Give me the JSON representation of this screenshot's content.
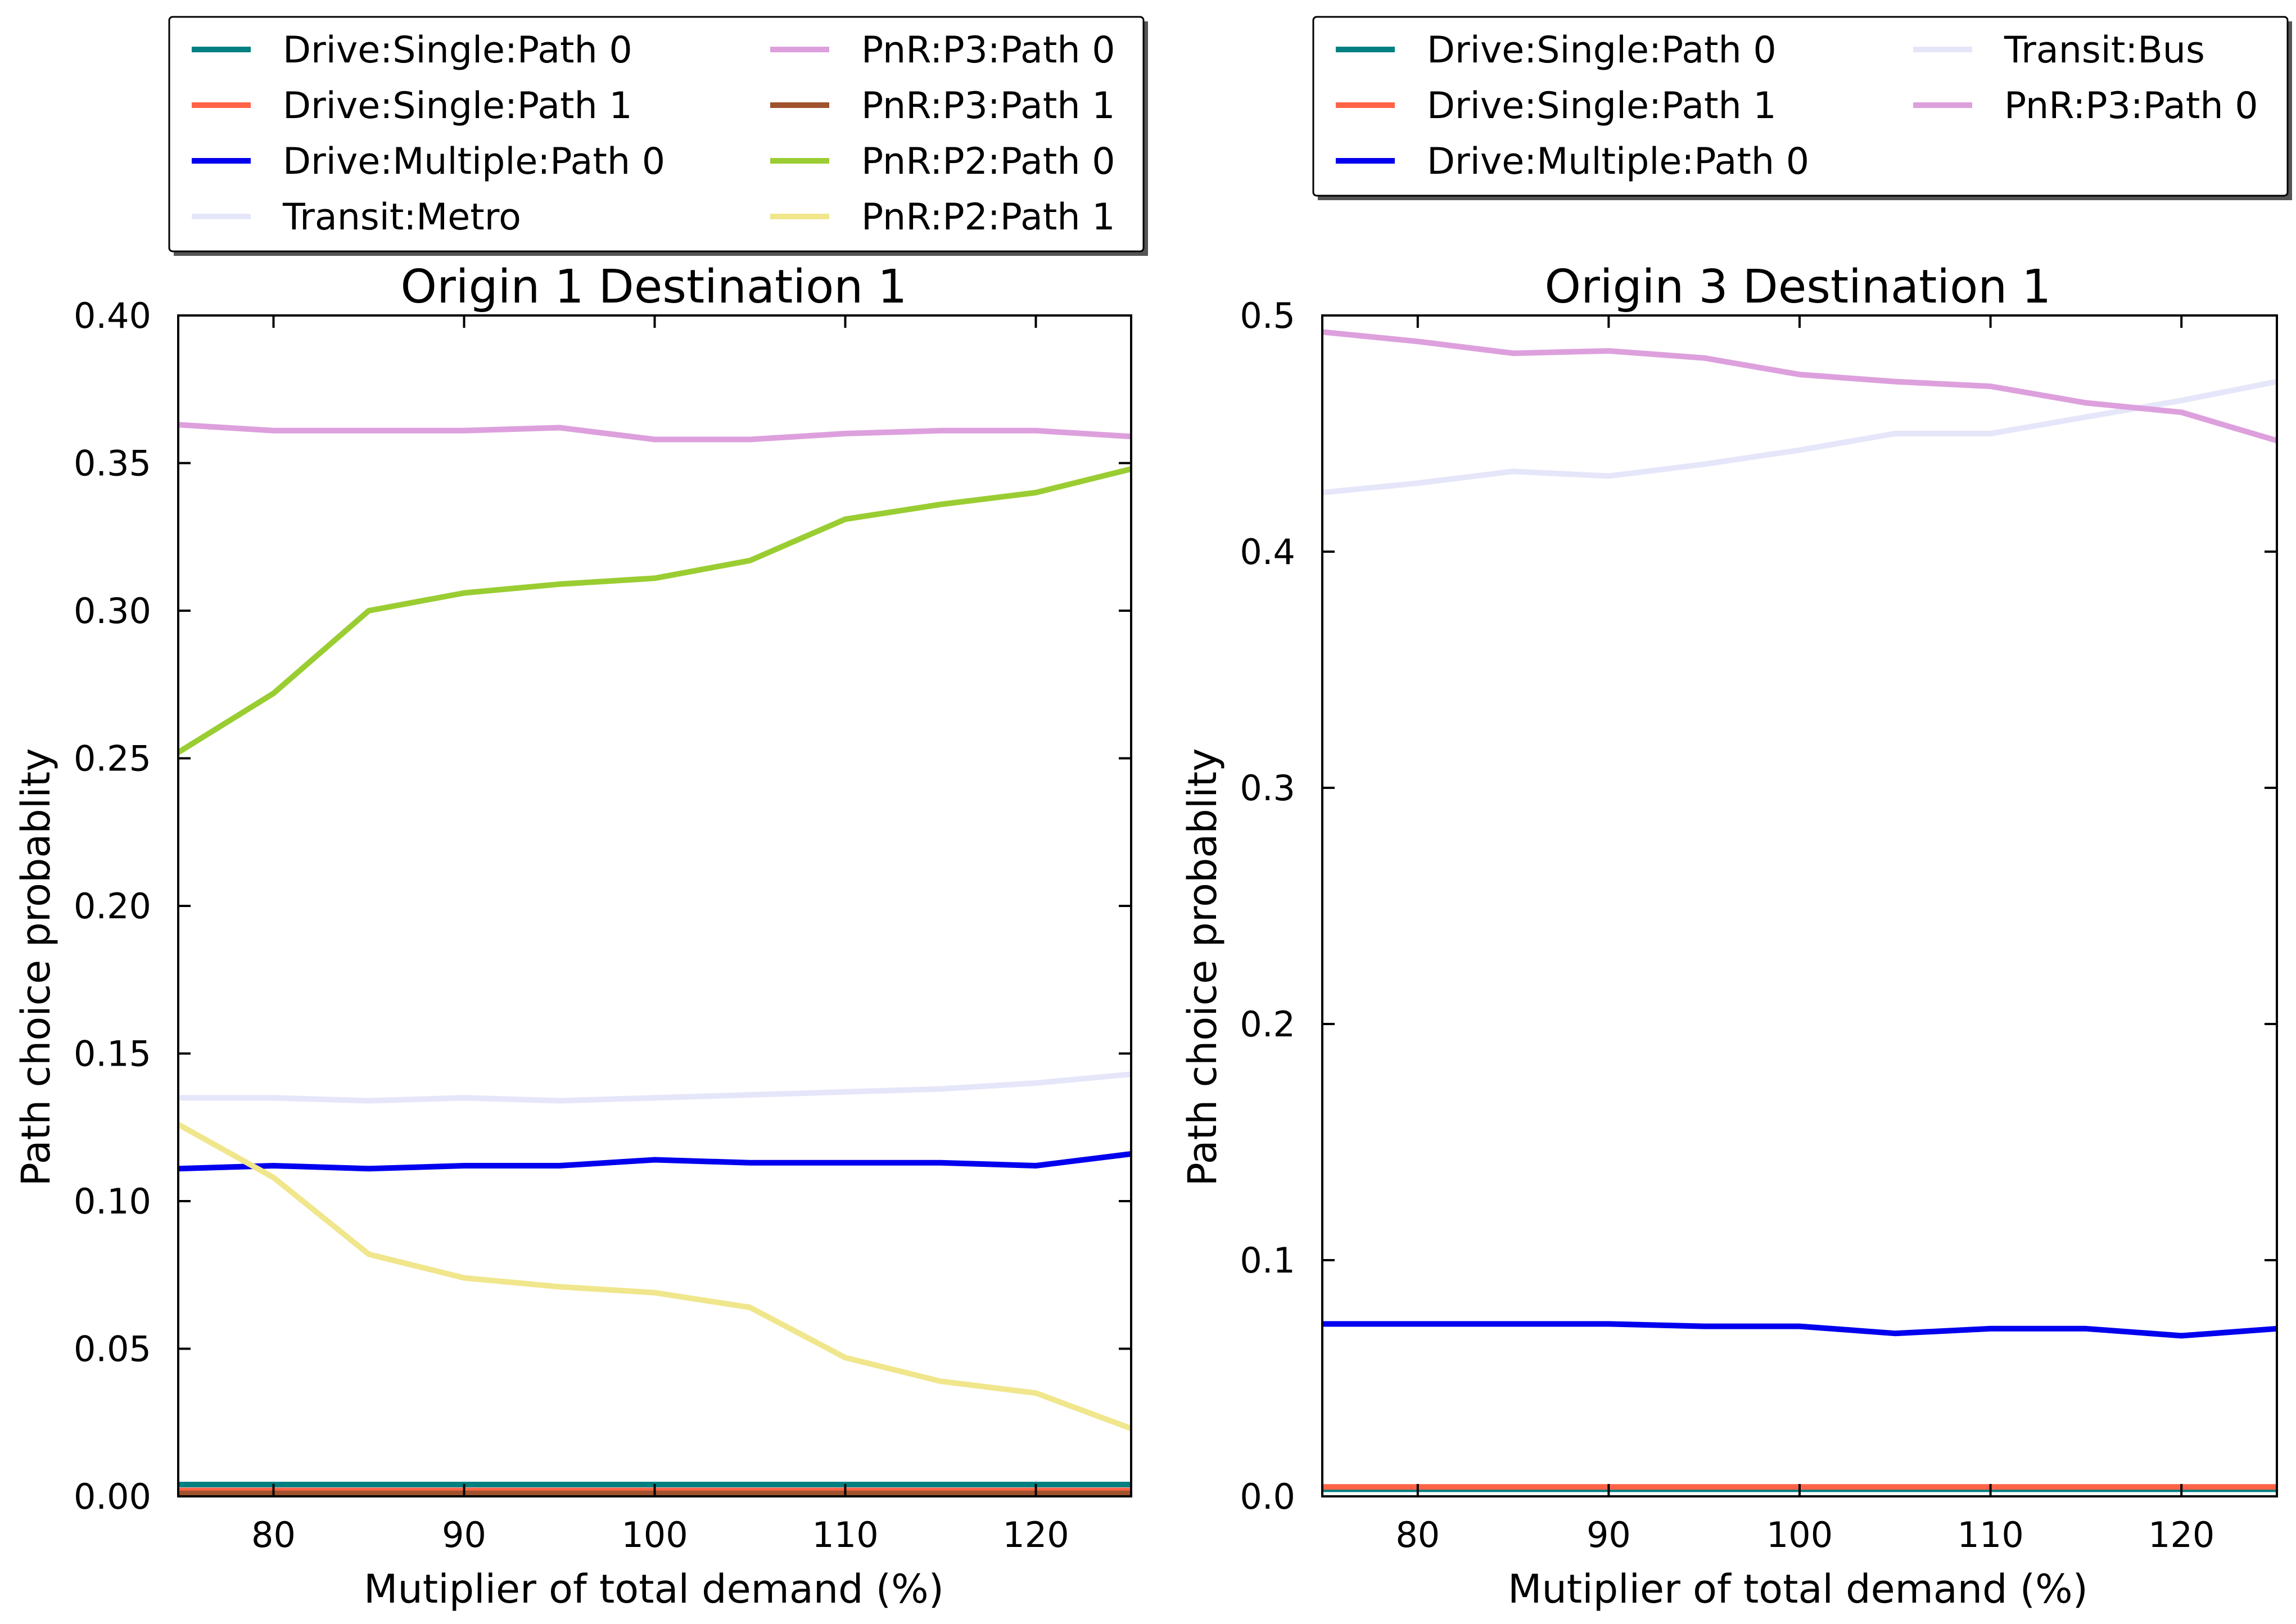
{
  "chart_data": [
    {
      "type": "line",
      "title": "Origin 1 Destination 1",
      "xlabel": "Mutiplier of total demand (%)",
      "ylabel": "Path choice probablity",
      "xlim": [
        75,
        125
      ],
      "ylim": [
        0,
        0.4
      ],
      "xticks": [
        80,
        90,
        100,
        110,
        120
      ],
      "xtick_labels": [
        "80",
        "90",
        "100",
        "110",
        "120"
      ],
      "yticks": [
        0,
        0.05,
        0.1,
        0.15,
        0.2,
        0.25,
        0.3,
        0.35,
        0.4
      ],
      "ytick_labels": [
        "0.00",
        "0.05",
        "0.10",
        "0.15",
        "0.20",
        "0.25",
        "0.30",
        "0.35",
        "0.40"
      ],
      "grid": false,
      "legend_position": "top",
      "legend_columns": 2,
      "x": [
        75,
        80,
        85,
        90,
        95,
        100,
        105,
        110,
        115,
        120,
        125
      ],
      "series": [
        {
          "name": "Drive:Single:Path 0",
          "color": "#008080",
          "values": [
            0.004,
            0.004,
            0.004,
            0.004,
            0.004,
            0.004,
            0.004,
            0.004,
            0.004,
            0.004,
            0.004
          ]
        },
        {
          "name": "Drive:Single:Path 1",
          "color": "#ff6347",
          "values": [
            0.002,
            0.002,
            0.002,
            0.002,
            0.002,
            0.002,
            0.002,
            0.002,
            0.002,
            0.002,
            0.002
          ]
        },
        {
          "name": "Drive:Multiple:Path 0",
          "color": "#0000ee",
          "values": [
            0.111,
            0.112,
            0.111,
            0.112,
            0.112,
            0.114,
            0.113,
            0.113,
            0.113,
            0.112,
            0.116
          ]
        },
        {
          "name": "Transit:Metro",
          "color": "#e6e6fa",
          "values": [
            0.135,
            0.135,
            0.134,
            0.135,
            0.134,
            0.135,
            0.136,
            0.137,
            0.138,
            0.14,
            0.143
          ]
        },
        {
          "name": "PnR:P3:Path 0",
          "color": "#dda0dd",
          "values": [
            0.363,
            0.361,
            0.361,
            0.361,
            0.362,
            0.358,
            0.358,
            0.36,
            0.361,
            0.361,
            0.359
          ]
        },
        {
          "name": "PnR:P3:Path 1",
          "color": "#a0522d",
          "values": [
            0.001,
            0.001,
            0.001,
            0.001,
            0.001,
            0.001,
            0.001,
            0.001,
            0.001,
            0.001,
            0.001
          ]
        },
        {
          "name": "PnR:P2:Path 0",
          "color": "#9acd32",
          "values": [
            0.252,
            0.272,
            0.3,
            0.306,
            0.309,
            0.311,
            0.317,
            0.331,
            0.336,
            0.34,
            0.348
          ]
        },
        {
          "name": "PnR:P2:Path 1",
          "color": "#f0e68c",
          "values": [
            0.126,
            0.108,
            0.082,
            0.074,
            0.071,
            0.069,
            0.064,
            0.047,
            0.039,
            0.035,
            0.023
          ]
        }
      ]
    },
    {
      "type": "line",
      "title": "Origin 3 Destination 1",
      "xlabel": "Mutiplier of total demand (%)",
      "ylabel": "Path choice probablity",
      "xlim": [
        75,
        125
      ],
      "ylim": [
        0,
        0.5
      ],
      "xticks": [
        80,
        90,
        100,
        110,
        120
      ],
      "xtick_labels": [
        "80",
        "90",
        "100",
        "110",
        "120"
      ],
      "yticks": [
        0,
        0.1,
        0.2,
        0.3,
        0.4,
        0.5
      ],
      "ytick_labels": [
        "0.0",
        "0.1",
        "0.2",
        "0.3",
        "0.4",
        "0.5"
      ],
      "grid": false,
      "legend_position": "top",
      "legend_columns": 2,
      "x": [
        75,
        80,
        85,
        90,
        95,
        100,
        105,
        110,
        115,
        120,
        125
      ],
      "series": [
        {
          "name": "Drive:Single:Path 0",
          "color": "#008080",
          "values": [
            0.003,
            0.003,
            0.003,
            0.003,
            0.003,
            0.003,
            0.003,
            0.003,
            0.003,
            0.003,
            0.003
          ]
        },
        {
          "name": "Drive:Single:Path 1",
          "color": "#ff6347",
          "values": [
            0.004,
            0.004,
            0.004,
            0.004,
            0.004,
            0.004,
            0.004,
            0.004,
            0.004,
            0.004,
            0.004
          ]
        },
        {
          "name": "Drive:Multiple:Path 0",
          "color": "#0000ee",
          "values": [
            0.073,
            0.073,
            0.073,
            0.073,
            0.072,
            0.072,
            0.069,
            0.071,
            0.071,
            0.068,
            0.071
          ]
        },
        {
          "name": "Transit:Bus",
          "color": "#e6e6fa",
          "values": [
            0.425,
            0.429,
            0.434,
            0.432,
            0.437,
            0.443,
            0.45,
            0.45,
            0.457,
            0.464,
            0.472
          ]
        },
        {
          "name": "PnR:P3:Path 0",
          "color": "#dda0dd",
          "values": [
            0.493,
            0.489,
            0.484,
            0.485,
            0.482,
            0.475,
            0.472,
            0.47,
            0.463,
            0.459,
            0.447
          ]
        }
      ]
    }
  ]
}
